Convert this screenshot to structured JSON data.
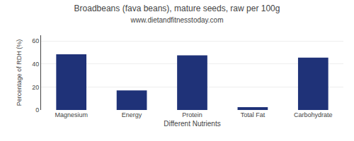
{
  "chart_data": {
    "type": "bar",
    "title": "Broadbeans (fava beans), mature seeds, raw per 100g",
    "subtitle": "www.dietandfitnesstoday.com",
    "xlabel": "Different Nutrients",
    "ylabel": "Percentage of RDH (%)",
    "categories": [
      "Magnesium",
      "Energy",
      "Protein",
      "Total Fat",
      "Carbohydrate"
    ],
    "values": [
      48.5,
      17.0,
      47.5,
      2.5,
      45.5
    ],
    "color": "#1f3278",
    "ylim": [
      0,
      65
    ],
    "yticks": [
      0,
      20,
      40,
      60
    ],
    "grid": true
  }
}
